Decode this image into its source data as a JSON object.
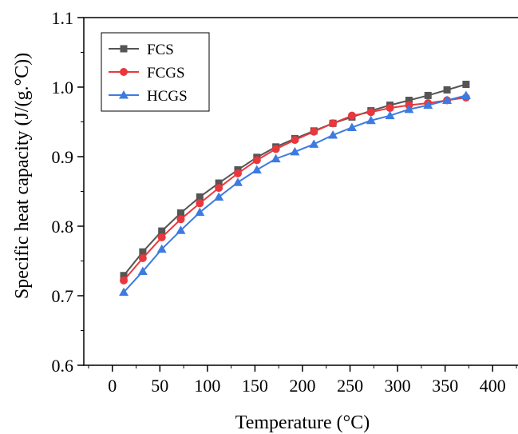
{
  "chart_data": {
    "type": "line",
    "title": "",
    "xlabel": "Temperature (°C)",
    "ylabel": "Specific heat capacity (J/(g.°C))",
    "xlim": [
      -30,
      430
    ],
    "ylim": [
      0.6,
      1.1
    ],
    "x_ticks": [
      0,
      50,
      100,
      150,
      200,
      250,
      300,
      350,
      400
    ],
    "y_ticks": [
      0.6,
      0.7,
      0.8,
      0.9,
      1.0,
      1.1
    ],
    "x_tick_labels": [
      "0",
      "50",
      "100",
      "150",
      "200",
      "250",
      "300",
      "350",
      "400"
    ],
    "y_tick_labels": [
      "0.6",
      "0.7",
      "0.8",
      "0.9",
      "1.0",
      "1.1"
    ],
    "grid": false,
    "legend_position": "top-left",
    "x": [
      12,
      32,
      52,
      72,
      92,
      112,
      132,
      152,
      172,
      192,
      212,
      232,
      252,
      272,
      292,
      312,
      332,
      352,
      372
    ],
    "series": [
      {
        "name": "FCS",
        "color": "#555555",
        "marker": "square",
        "values": [
          0.729,
          0.763,
          0.793,
          0.819,
          0.842,
          0.862,
          0.881,
          0.899,
          0.914,
          0.926,
          0.937,
          0.948,
          0.957,
          0.966,
          0.974,
          0.981,
          0.988,
          0.996,
          1.004
        ]
      },
      {
        "name": "FCGS",
        "color": "#e8383d",
        "marker": "circle",
        "values": [
          0.722,
          0.754,
          0.784,
          0.81,
          0.833,
          0.855,
          0.876,
          0.895,
          0.911,
          0.924,
          0.936,
          0.948,
          0.959,
          0.964,
          0.97,
          0.974,
          0.977,
          0.981,
          0.985
        ]
      },
      {
        "name": "HCGS",
        "color": "#3d7be0",
        "marker": "triangle",
        "values": [
          0.705,
          0.735,
          0.767,
          0.794,
          0.82,
          0.842,
          0.863,
          0.881,
          0.897,
          0.907,
          0.918,
          0.931,
          0.942,
          0.952,
          0.959,
          0.968,
          0.974,
          0.981,
          0.988
        ]
      }
    ]
  }
}
